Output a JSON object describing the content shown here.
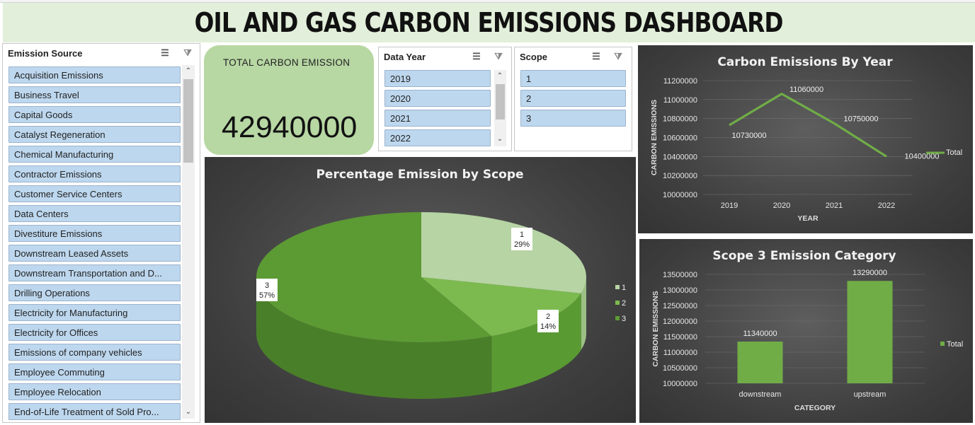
{
  "dashboard": {
    "title": "OIL AND GAS CARBON EMISSIONS DASHBOARD"
  },
  "kpi": {
    "label": "TOTAL CARBON EMISSION",
    "value": "42940000"
  },
  "slicers": {
    "emission_source": {
      "title": "Emission Source",
      "items": [
        "Acquisition Emissions",
        "Business Travel",
        "Capital Goods",
        "Catalyst Regeneration",
        "Chemical Manufacturing",
        "Contractor Emissions",
        "Customer Service Centers",
        "Data Centers",
        "Divestiture Emissions",
        "Downstream Leased Assets",
        "Downstream Transportation and D...",
        "Drilling Operations",
        "Electricity for Manufacturing",
        "Electricity for Offices",
        "Emissions of company vehicles",
        "Employee Commuting",
        "Employee Relocation",
        "End-of-Life Treatment of Sold Pro..."
      ]
    },
    "data_year": {
      "title": "Data Year",
      "items": [
        "2019",
        "2020",
        "2021",
        "2022"
      ]
    },
    "scope": {
      "title": "Scope",
      "items": [
        "1",
        "2",
        "3"
      ]
    }
  },
  "icons": {
    "multi_select": "multi-select-icon",
    "clear_filter": "clear-filter-icon",
    "scroll_up": "chevron-up-icon",
    "scroll_down": "chevron-down-icon"
  },
  "colors": {
    "accent_green": "#70ad47",
    "slicer_item": "#bdd7ee",
    "title_band": "#e2efda",
    "kpi_card": "#b7d7a3"
  },
  "chart_data": [
    {
      "type": "pie",
      "title": "Percentage Emission by Scope",
      "categories": [
        "1",
        "2",
        "3"
      ],
      "values": [
        29,
        14,
        57
      ],
      "labels": [
        "29%",
        "14%",
        "57%"
      ],
      "legend": {
        "position": "right",
        "entries": [
          "1",
          "2",
          "3"
        ]
      },
      "colors": [
        "#b7d4a4",
        "#7cba4f",
        "#5c9a34"
      ]
    },
    {
      "type": "line",
      "title": "Carbon Emissions By Year",
      "x": [
        "2019",
        "2020",
        "2021",
        "2022"
      ],
      "series": [
        {
          "name": "Total",
          "values": [
            10730000,
            11060000,
            10750000,
            10400000
          ]
        }
      ],
      "xlabel": "YEAR",
      "ylabel": "CARBON EMISSIONS",
      "ylim": [
        10000000,
        11200000
      ],
      "yticks": [
        "11200000",
        "11000000",
        "10800000",
        "10600000",
        "10400000",
        "10200000",
        "10000000"
      ],
      "legend": {
        "position": "right"
      },
      "grid": true
    },
    {
      "type": "bar",
      "title": "Scope 3 Emission Category",
      "categories": [
        "downstream",
        "upstream"
      ],
      "series": [
        {
          "name": "Total",
          "values": [
            11340000,
            13290000
          ]
        }
      ],
      "xlabel": "CATEGORY",
      "ylabel": "CARBON EMISSIONS",
      "ylim": [
        10000000,
        13500000
      ],
      "yticks": [
        "13500000",
        "13000000",
        "12500000",
        "12000000",
        "11500000",
        "11000000",
        "10500000",
        "10000000"
      ],
      "legend": {
        "position": "right"
      },
      "grid": true
    }
  ]
}
